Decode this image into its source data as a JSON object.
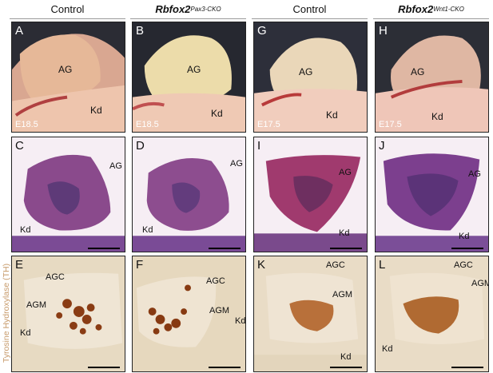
{
  "columns": [
    {
      "label": "Control",
      "gene": "",
      "sup": ""
    },
    {
      "label": "",
      "gene": "Rbfox2",
      "sup": "Pax3-CKO"
    },
    {
      "label": "Control",
      "gene": "",
      "sup": ""
    },
    {
      "label": "",
      "gene": "Rbfox2",
      "sup": "Wnt1-CKO"
    }
  ],
  "row_label": "Tyrosine Hydroxylase (TH)",
  "row1": [
    {
      "letter": "A",
      "ag": "AG",
      "kd": "Kd",
      "stage": "E18.5"
    },
    {
      "letter": "B",
      "ag": "AG",
      "kd": "Kd",
      "stage": "E18.5"
    },
    {
      "letter": "G",
      "ag": "AG",
      "kd": "Kd",
      "stage": "E17.5"
    },
    {
      "letter": "H",
      "ag": "AG",
      "kd": "Kd",
      "stage": "E17.5"
    }
  ],
  "row2": [
    {
      "letter": "C",
      "ag": "AG",
      "kd": "Kd"
    },
    {
      "letter": "D",
      "ag": "AG",
      "kd": "Kd"
    },
    {
      "letter": "I",
      "ag": "AG",
      "kd": "Kd"
    },
    {
      "letter": "J",
      "ag": "AG",
      "kd": "Kd"
    }
  ],
  "row3": [
    {
      "letter": "E",
      "agc": "AGC",
      "agm": "AGM",
      "kd": "Kd"
    },
    {
      "letter": "F",
      "agc": "AGC",
      "agm": "AGM",
      "kd": "Kd"
    },
    {
      "letter": "K",
      "agc": "AGC",
      "agm": "AGM",
      "kd": "Kd"
    },
    {
      "letter": "L",
      "agc": "AGC",
      "agm": "AGM",
      "kd": "Kd"
    }
  ]
}
